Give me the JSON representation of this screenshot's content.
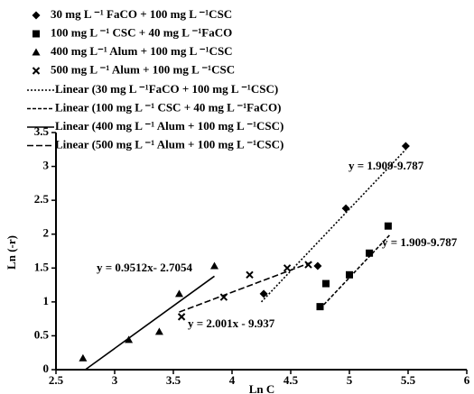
{
  "chart_data": {
    "type": "scatter",
    "x_label": "Ln C",
    "y_label": "Ln (-r)",
    "xlim": [
      2.5,
      6
    ],
    "ylim": [
      0,
      3.5
    ],
    "xticks": [
      2.5,
      3,
      3.5,
      4,
      4.5,
      5,
      5.5,
      6
    ],
    "yticks": [
      0,
      0.5,
      1,
      1.5,
      2,
      2.5,
      3,
      3.5
    ],
    "series": [
      {
        "name": "30 mg L ⁻¹ FaCO + 100 mg L ⁻¹CSC",
        "marker": "diamond",
        "color": "#000000",
        "x": [
          4.27,
          4.73,
          4.97,
          5.48
        ],
        "values": [
          1.12,
          1.53,
          2.38,
          3.3
        ]
      },
      {
        "name": "100 mg L ⁻¹ CSC + 40 mg L ⁻¹FaCO",
        "marker": "square",
        "color": "#000000",
        "x": [
          4.75,
          4.8,
          5.0,
          5.17,
          5.33
        ],
        "values": [
          0.93,
          1.27,
          1.4,
          1.72,
          2.12
        ]
      },
      {
        "name": "400 mg L⁻¹ Alum + 100 mg L ⁻¹CSC",
        "marker": "triangle",
        "color": "#000000",
        "x": [
          2.73,
          3.12,
          3.38,
          3.55,
          3.85
        ],
        "values": [
          0.17,
          0.44,
          0.56,
          1.12,
          1.53
        ]
      },
      {
        "name": "500 mg L ⁻¹ Alum + 100 mg L ⁻¹CSC",
        "marker": "x",
        "color": "#000000",
        "x": [
          3.57,
          3.93,
          4.15,
          4.47,
          4.65
        ],
        "values": [
          0.78,
          1.07,
          1.4,
          1.5,
          1.55
        ]
      }
    ],
    "trendlines": [
      {
        "name": "Linear (30 mg L ⁻¹FaCO + 100 mg L ⁻¹CSC)",
        "dash": "2,2",
        "color": "#000000",
        "x": [
          4.25,
          5.48
        ],
        "values": [
          1.0,
          3.25
        ]
      },
      {
        "name": "Linear (100 mg L ⁻¹ CSC + 40 mg L ⁻¹FaCO)",
        "dash": "4,2",
        "color": "#000000",
        "x": [
          4.75,
          5.35
        ],
        "values": [
          0.9,
          2.0
        ]
      },
      {
        "name": "Linear (400 mg L ⁻¹ Alum + 100 mg L ⁻¹CSC)",
        "dash": "none",
        "color": "#000000",
        "x": [
          2.75,
          3.85
        ],
        "values": [
          0.0,
          1.38
        ]
      },
      {
        "name": "Linear (500 mg L ⁻¹ Alum + 100 mg L ⁻¹CSC)",
        "dash": "7,3",
        "color": "#000000",
        "x": [
          3.55,
          4.7
        ],
        "values": [
          0.85,
          1.6
        ]
      }
    ],
    "annotations": [
      "y = 1.909-9.787",
      "y = 1.909-9.787",
      "y = 0.9512x- 2.7054",
      "y = 2.001x - 9.937"
    ]
  }
}
